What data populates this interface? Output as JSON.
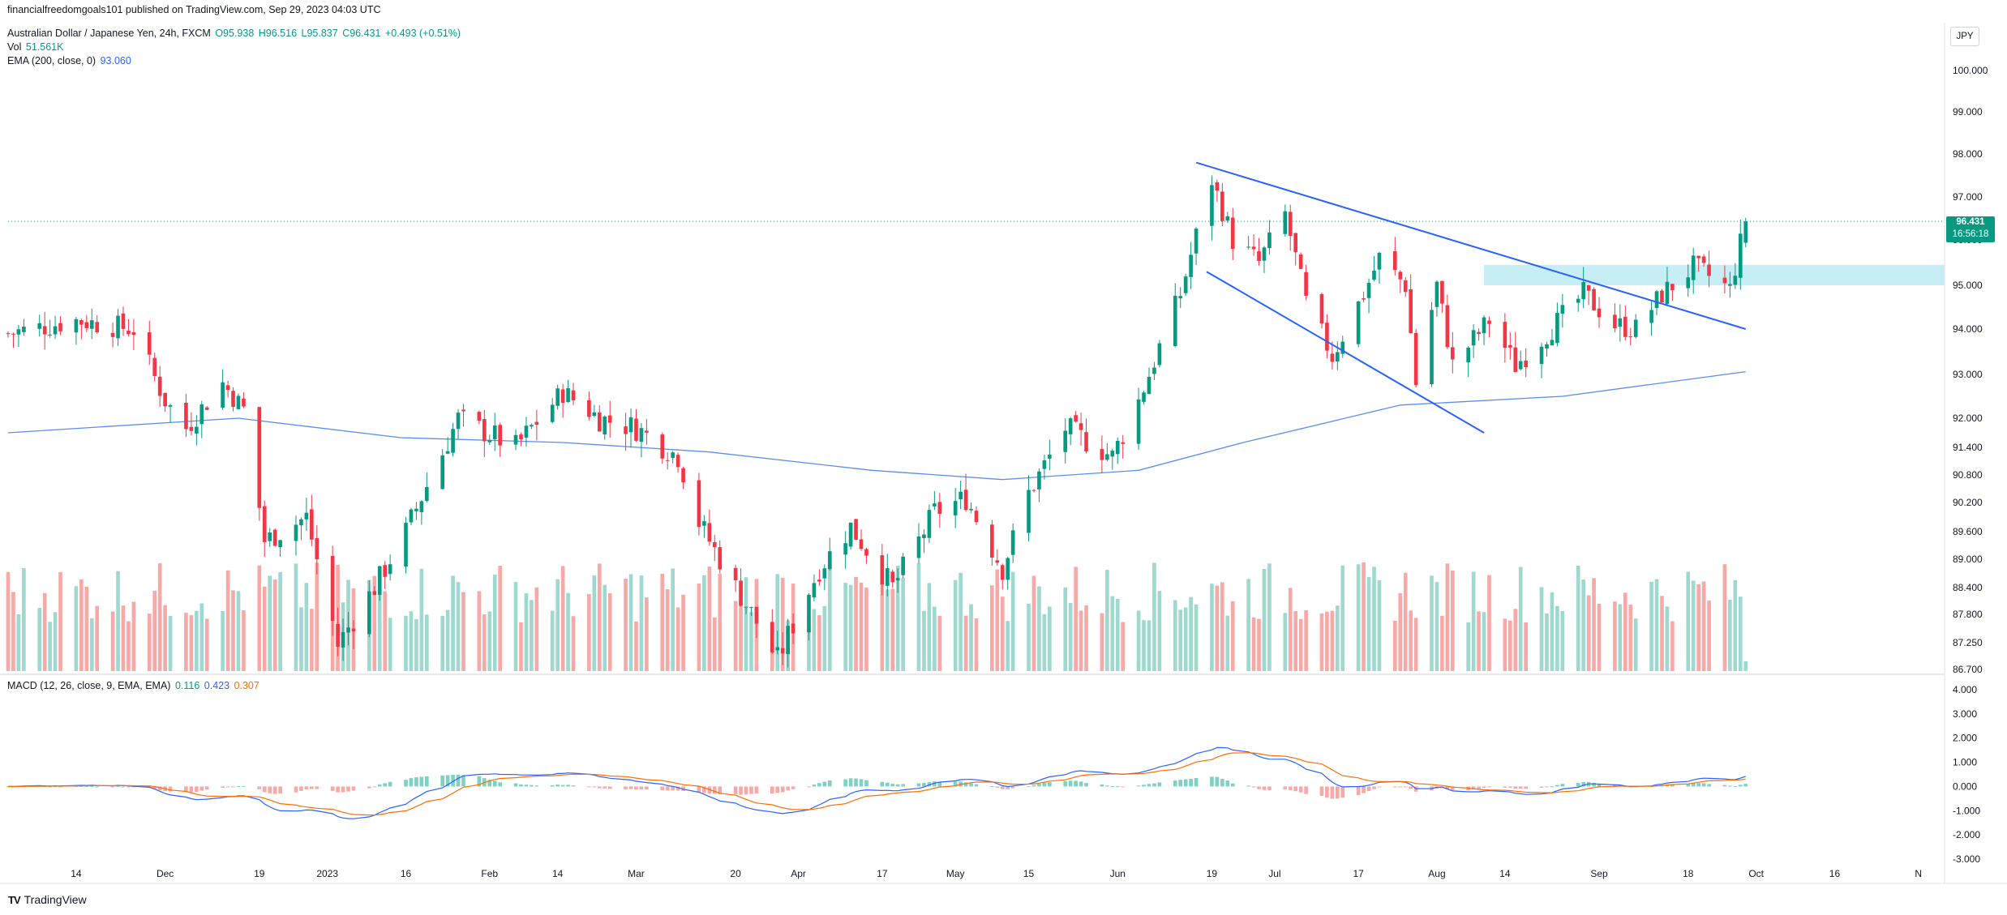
{
  "header": {
    "published": "financialfreedomgoals101 published on TradingView.com, Sep 29, 2023 04:03 UTC",
    "symbol": "Australian Dollar / Japanese Yen, 24h, FXCM",
    "ohlc": {
      "o": "O95.938",
      "h": "H96.516",
      "l": "L95.837",
      "c": "C96.431",
      "chg": "+0.493 (+0.51%)"
    },
    "vol_label": "Vol",
    "vol_value": "51.561K",
    "ema_label": "EMA (200, close, 0)",
    "ema_value": "93.060",
    "macd_label": "MACD (12, 26, close, 9, EMA, EMA)",
    "macd_values": [
      "0.116",
      "0.423",
      "0.307"
    ]
  },
  "currency_button": "JPY",
  "last_price": {
    "price": "96.431",
    "countdown": "16:56:18"
  },
  "footer": {
    "brand": "TradingView",
    "logo": "TV"
  },
  "colors": {
    "up": "#089981",
    "down": "#f23645",
    "vol_up": "#9fd8cf",
    "vol_down": "#f7a9a7",
    "ema": "#5b8def",
    "trend": "#2962ff",
    "zone": "#c7eef5",
    "macd_line": "#2962ff",
    "signal_line": "#ff6d00"
  },
  "chart_data": [
    {
      "type": "candlestick",
      "title": "Australian Dollar / Japanese Yen, 24h, FXCM",
      "y_axis_ticks": [
        "100.000",
        "99.000",
        "98.000",
        "97.000",
        "96.000",
        "95.000",
        "94.000",
        "93.000",
        "92.000",
        "91.400",
        "90.800",
        "90.200",
        "89.600",
        "89.000",
        "88.400",
        "87.800",
        "87.250",
        "86.700"
      ],
      "x_axis_ticks": [
        "14",
        "Dec",
        "19",
        "2023",
        "16",
        "Feb",
        "14",
        "Mar",
        "20",
        "Apr",
        "17",
        "May",
        "15",
        "Jun",
        "19",
        "Jul",
        "17",
        "Aug",
        "14",
        "Sep",
        "18",
        "Oct",
        "16",
        "N"
      ],
      "ylim": [
        86.7,
        100.6
      ],
      "anchors": {
        "start": {
          "date": "2022-11-01",
          "close": 93.9
        },
        "end": {
          "date": "2023-09-29",
          "close": 96.431
        }
      },
      "waypoints": [
        {
          "date": "2022-11-01",
          "close": 93.9
        },
        {
          "date": "2022-11-14",
          "close": 94.2
        },
        {
          "date": "2022-11-25",
          "close": 94.0
        },
        {
          "date": "2022-12-01",
          "close": 92.4
        },
        {
          "date": "2022-12-05",
          "close": 91.8
        },
        {
          "date": "2022-12-12",
          "close": 92.8
        },
        {
          "date": "2022-12-16",
          "close": 92.2
        },
        {
          "date": "2022-12-20",
          "close": 89.4
        },
        {
          "date": "2022-12-28",
          "close": 89.9
        },
        {
          "date": "2023-01-03",
          "close": 87.2
        },
        {
          "date": "2023-01-10",
          "close": 88.4
        },
        {
          "date": "2023-01-16",
          "close": 89.6
        },
        {
          "date": "2023-01-26",
          "close": 92.0
        },
        {
          "date": "2023-02-06",
          "close": 91.4
        },
        {
          "date": "2023-02-15",
          "close": 92.6
        },
        {
          "date": "2023-02-22",
          "close": 92.0
        },
        {
          "date": "2023-03-01",
          "close": 91.8
        },
        {
          "date": "2023-03-09",
          "close": 91.2
        },
        {
          "date": "2023-03-13",
          "close": 89.8
        },
        {
          "date": "2023-03-20",
          "close": 88.4
        },
        {
          "date": "2023-03-28",
          "close": 86.9
        },
        {
          "date": "2023-04-05",
          "close": 88.8
        },
        {
          "date": "2023-04-11",
          "close": 89.7
        },
        {
          "date": "2023-04-19",
          "close": 88.4
        },
        {
          "date": "2023-04-27",
          "close": 90.0
        },
        {
          "date": "2023-05-03",
          "close": 90.3
        },
        {
          "date": "2023-05-10",
          "close": 88.8
        },
        {
          "date": "2023-05-15",
          "close": 90.4
        },
        {
          "date": "2023-05-22",
          "close": 91.8
        },
        {
          "date": "2023-05-31",
          "close": 91.2
        },
        {
          "date": "2023-06-05",
          "close": 92.4
        },
        {
          "date": "2023-06-13",
          "close": 94.8
        },
        {
          "date": "2023-06-19",
          "close": 97.4
        },
        {
          "date": "2023-06-23",
          "close": 96.0
        },
        {
          "date": "2023-06-28",
          "close": 95.5
        },
        {
          "date": "2023-07-03",
          "close": 96.6
        },
        {
          "date": "2023-07-07",
          "close": 94.6
        },
        {
          "date": "2023-07-12",
          "close": 93.4
        },
        {
          "date": "2023-07-18",
          "close": 94.8
        },
        {
          "date": "2023-07-21",
          "close": 95.6
        },
        {
          "date": "2023-07-26",
          "close": 95.0
        },
        {
          "date": "2023-07-28",
          "close": 92.8
        },
        {
          "date": "2023-08-01",
          "close": 95.0
        },
        {
          "date": "2023-08-04",
          "close": 93.2
        },
        {
          "date": "2023-08-11",
          "close": 94.2
        },
        {
          "date": "2023-08-16",
          "close": 93.2
        },
        {
          "date": "2023-08-22",
          "close": 93.9
        },
        {
          "date": "2023-08-29",
          "close": 94.8
        },
        {
          "date": "2023-09-04",
          "close": 94.1
        },
        {
          "date": "2023-09-08",
          "close": 94.0
        },
        {
          "date": "2023-09-13",
          "close": 94.8
        },
        {
          "date": "2023-09-19",
          "close": 95.4
        },
        {
          "date": "2023-09-22",
          "close": 95.2
        },
        {
          "date": "2023-09-26",
          "close": 94.9
        },
        {
          "date": "2023-09-29",
          "close": 96.431
        }
      ],
      "ema_200": [
        {
          "date": "2022-11-01",
          "value": 91.7
        },
        {
          "date": "2022-12-15",
          "value": 92.0
        },
        {
          "date": "2023-01-15",
          "value": 91.6
        },
        {
          "date": "2023-02-15",
          "value": 91.5
        },
        {
          "date": "2023-03-15",
          "value": 91.3
        },
        {
          "date": "2023-04-15",
          "value": 90.9
        },
        {
          "date": "2023-05-10",
          "value": 90.7
        },
        {
          "date": "2023-06-05",
          "value": 90.9
        },
        {
          "date": "2023-06-25",
          "value": 91.5
        },
        {
          "date": "2023-07-25",
          "value": 92.3
        },
        {
          "date": "2023-08-25",
          "value": 92.5
        },
        {
          "date": "2023-09-29",
          "value": 93.06
        }
      ],
      "trendlines": [
        {
          "from": {
            "date": "2023-06-16",
            "price": 97.8
          },
          "to": {
            "date": "2023-09-29",
            "price": 94.0
          }
        },
        {
          "from": {
            "date": "2023-06-18",
            "price": 95.3
          },
          "to": {
            "date": "2023-08-10",
            "price": 91.7
          }
        }
      ],
      "zone": {
        "from_date": "2023-08-10",
        "to_date": "2023-11-06",
        "low": 95.0,
        "high": 95.45
      },
      "volume_ticks": [
        "51.561K"
      ]
    },
    {
      "type": "macd",
      "title": "MACD (12, 26, close, 9, EMA, EMA)",
      "y_axis_ticks": [
        "4.000",
        "3.000",
        "2.000",
        "1.000",
        "0.000",
        "-1.000",
        "-2.000",
        "-3.000"
      ],
      "ylim": [
        -3.3,
        4.3
      ],
      "values": {
        "histogram": 0.116,
        "macd": 0.423,
        "signal": 0.307
      }
    }
  ]
}
